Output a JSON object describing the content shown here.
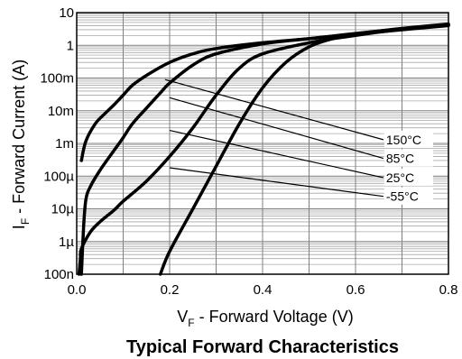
{
  "chart_data": {
    "type": "line",
    "title": "Typical Forward Characteristics",
    "xlabel": {
      "main": "V",
      "sub": "F",
      "rest": " - Forward Voltage (V)"
    },
    "ylabel": {
      "main": "I",
      "sub": "F",
      "rest": " - Forward Current (A)"
    },
    "x_scale": "linear",
    "y_scale": "log",
    "xlim": [
      0,
      0.8
    ],
    "ylim": [
      1e-07,
      10
    ],
    "x_ticks": [
      {
        "value": 0.0,
        "label": "0.0"
      },
      {
        "value": 0.2,
        "label": "0.2"
      },
      {
        "value": 0.4,
        "label": "0.4"
      },
      {
        "value": 0.6,
        "label": "0.6"
      },
      {
        "value": 0.8,
        "label": "0.8"
      }
    ],
    "y_ticks": [
      {
        "value": 10,
        "label": "10"
      },
      {
        "value": 1,
        "label": "1"
      },
      {
        "value": 0.1,
        "label": "100m"
      },
      {
        "value": 0.01,
        "label": "10m"
      },
      {
        "value": 0.001,
        "label": "1m"
      },
      {
        "value": 0.0001,
        "label": "100µ"
      },
      {
        "value": 1e-05,
        "label": "10µ"
      },
      {
        "value": 1e-06,
        "label": "1µ"
      },
      {
        "value": 1e-07,
        "label": "100n"
      }
    ],
    "grid": true,
    "series": [
      {
        "name": "150°C",
        "points": [
          [
            0.01,
            0.0003
          ],
          [
            0.02,
            0.0012
          ],
          [
            0.04,
            0.004
          ],
          [
            0.06,
            0.008
          ],
          [
            0.08,
            0.015
          ],
          [
            0.1,
            0.03
          ],
          [
            0.12,
            0.06
          ],
          [
            0.15,
            0.12
          ],
          [
            0.2,
            0.3
          ],
          [
            0.25,
            0.55
          ],
          [
            0.3,
            0.8
          ],
          [
            0.4,
            1.2
          ],
          [
            0.5,
            1.6
          ],
          [
            0.6,
            2.2
          ],
          [
            0.7,
            3.0
          ],
          [
            0.8,
            4.0
          ]
        ]
      },
      {
        "name": "85°C",
        "points": [
          [
            0.01,
            1e-07
          ],
          [
            0.015,
            3e-06
          ],
          [
            0.02,
            2e-05
          ],
          [
            0.03,
            5e-05
          ],
          [
            0.05,
            0.00015
          ],
          [
            0.08,
            0.0006
          ],
          [
            0.1,
            0.0015
          ],
          [
            0.12,
            0.004
          ],
          [
            0.15,
            0.012
          ],
          [
            0.18,
            0.035
          ],
          [
            0.2,
            0.07
          ],
          [
            0.25,
            0.25
          ],
          [
            0.3,
            0.55
          ],
          [
            0.4,
            1.1
          ],
          [
            0.5,
            1.6
          ],
          [
            0.6,
            2.3
          ],
          [
            0.7,
            3.2
          ],
          [
            0.8,
            4.1
          ]
        ]
      },
      {
        "name": "25°C",
        "points": [
          [
            0.005,
            1e-07
          ],
          [
            0.008,
            3e-07
          ],
          [
            0.01,
            6e-07
          ],
          [
            0.03,
            2e-06
          ],
          [
            0.05,
            4e-06
          ],
          [
            0.08,
            9e-06
          ],
          [
            0.1,
            1.7e-05
          ],
          [
            0.15,
            7e-05
          ],
          [
            0.2,
            0.0004
          ],
          [
            0.25,
            0.003
          ],
          [
            0.3,
            0.03
          ],
          [
            0.35,
            0.2
          ],
          [
            0.4,
            0.55
          ],
          [
            0.5,
            1.2
          ],
          [
            0.6,
            2.0
          ],
          [
            0.7,
            3.1
          ],
          [
            0.8,
            4.3
          ]
        ]
      },
      {
        "name": "-55°C",
        "points": [
          [
            0.18,
            1e-07
          ],
          [
            0.2,
            5e-07
          ],
          [
            0.25,
            1e-05
          ],
          [
            0.3,
            0.0002
          ],
          [
            0.35,
            0.004
          ],
          [
            0.4,
            0.05
          ],
          [
            0.45,
            0.3
          ],
          [
            0.5,
            0.9
          ],
          [
            0.55,
            1.6
          ],
          [
            0.6,
            2.2
          ],
          [
            0.7,
            3.3
          ],
          [
            0.8,
            4.5
          ]
        ]
      }
    ],
    "annotations": [
      {
        "label": "150°C",
        "from": [
          0.19,
          0.09
        ],
        "to": [
          0.66,
          0.0013
        ]
      },
      {
        "label": "85°C",
        "from": [
          0.2,
          0.025
        ],
        "to": [
          0.66,
          0.00035
        ]
      },
      {
        "label": "25°C",
        "from": [
          0.2,
          0.0025
        ],
        "to": [
          0.66,
          9e-05
        ]
      },
      {
        "label": "-55°C",
        "from": [
          0.2,
          0.00018
        ],
        "to": [
          0.66,
          2.4e-05
        ]
      }
    ]
  }
}
